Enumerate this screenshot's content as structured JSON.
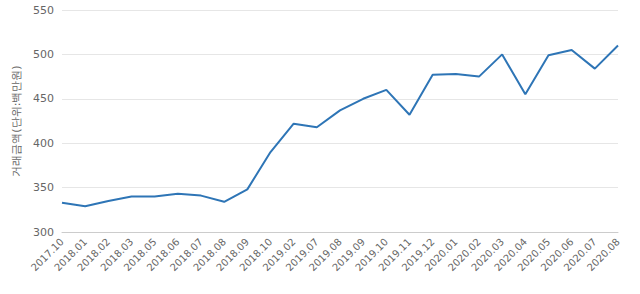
{
  "chart_data": {
    "type": "line",
    "y_label": "거래금액(단위:백만원)",
    "categories": [
      "2017.10",
      "2018.01",
      "2018.02",
      "2018.03",
      "2018.05",
      "2018.06",
      "2018.07",
      "2018.08",
      "2018.09",
      "2018.10",
      "2019.02",
      "2019.07",
      "2019.08",
      "2019.09",
      "2019.10",
      "2019.11",
      "2019.12",
      "2020.01",
      "2020.02",
      "2020.03",
      "2020.04",
      "2020.05",
      "2020.06",
      "2020.07",
      "2020.08"
    ],
    "values": [
      333,
      329,
      335,
      340,
      340,
      343,
      341,
      334,
      348,
      390,
      422,
      418,
      437,
      450,
      460,
      432,
      477,
      478,
      475,
      500,
      455,
      499,
      505,
      484,
      510
    ],
    "color": "#2e75b6",
    "ylim": [
      300,
      550
    ],
    "yticks": [
      300,
      350,
      400,
      450,
      500,
      550
    ],
    "grid": true
  }
}
